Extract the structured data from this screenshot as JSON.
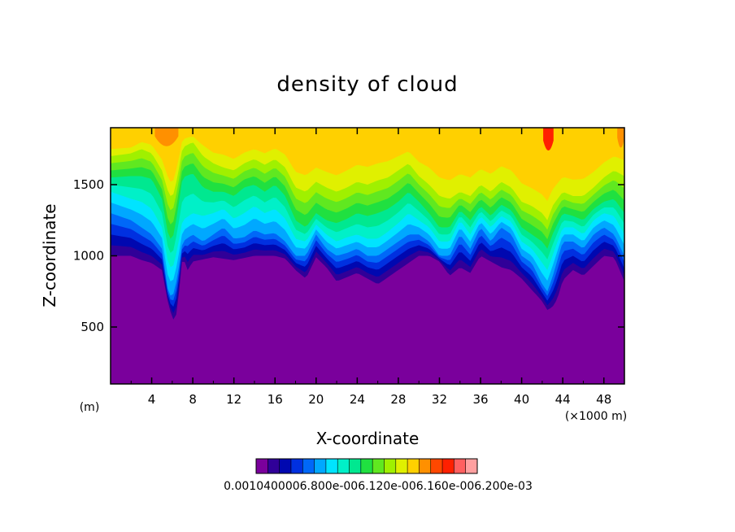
{
  "chart_data": {
    "type": "heatmap",
    "subtype": "filled-contour",
    "title": "density of cloud",
    "xlabel": "X-coordinate",
    "ylabel": "Z-coordinate",
    "x_unit_label": "(×1000 m)",
    "y_unit_label": "(m)",
    "xlim": [
      0,
      50
    ],
    "ylim": [
      100,
      1900
    ],
    "x_ticks": [
      "4",
      "8",
      "12",
      "16",
      "20",
      "24",
      "28",
      "32",
      "36",
      "40",
      "44",
      "48"
    ],
    "y_ticks": [
      "500",
      "1000",
      "1500"
    ],
    "colorbar_labels": "0.0010400006.800e-006.120e-006.160e-006.200e-03",
    "levels": [
      "l0",
      "l1",
      "l2",
      "l3",
      "l4",
      "l5",
      "l6",
      "l7",
      "l8",
      "l9",
      "l10",
      "l11",
      "l12",
      "l13",
      "l14",
      "l15",
      "l16",
      "l17"
    ],
    "colors": [
      "#7a009c",
      "#300098",
      "#0008b0",
      "#0030e0",
      "#0068f8",
      "#00a8ff",
      "#00e4ff",
      "#00f0c8",
      "#00e890",
      "#20e040",
      "#60e820",
      "#a0f000",
      "#e0f000",
      "#ffd000",
      "#ff9000",
      "#ff4800",
      "#ff2000",
      "#ff6060",
      "#ffa0a0"
    ],
    "cloud_base_m": [
      [
        0,
        1000
      ],
      [
        2,
        1000
      ],
      [
        3,
        970
      ],
      [
        4,
        950
      ],
      [
        5,
        900
      ],
      [
        5.5,
        700
      ],
      [
        6,
        560
      ],
      [
        6.3,
        540
      ],
      [
        6.6,
        700
      ],
      [
        7,
        1000
      ],
      [
        7.5,
        900
      ],
      [
        8,
        960
      ],
      [
        10,
        990
      ],
      [
        12,
        970
      ],
      [
        14,
        1000
      ],
      [
        16,
        1000
      ],
      [
        17,
        980
      ],
      [
        18,
        900
      ],
      [
        19,
        840
      ],
      [
        20,
        990
      ],
      [
        21,
        920
      ],
      [
        22,
        820
      ],
      [
        24,
        880
      ],
      [
        26,
        800
      ],
      [
        28,
        900
      ],
      [
        30,
        1000
      ],
      [
        31,
        1000
      ],
      [
        32,
        960
      ],
      [
        33,
        860
      ],
      [
        34,
        920
      ],
      [
        35,
        880
      ],
      [
        36,
        1000
      ],
      [
        37,
        960
      ],
      [
        38,
        920
      ],
      [
        39,
        900
      ],
      [
        40,
        840
      ],
      [
        41,
        760
      ],
      [
        42,
        680
      ],
      [
        42.5,
        620
      ],
      [
        43,
        640
      ],
      [
        43.5,
        700
      ],
      [
        44,
        830
      ],
      [
        45,
        900
      ],
      [
        46,
        860
      ],
      [
        47,
        930
      ],
      [
        48,
        1000
      ],
      [
        49,
        990
      ],
      [
        50,
        820
      ]
    ],
    "contour_heights_m": [
      [
        0,
        1300,
        1450,
        1550,
        1700,
        1800
      ],
      [
        2,
        1250,
        1400,
        1560,
        1720,
        1800
      ],
      [
        3,
        1200,
        1380,
        1560,
        1750,
        1850
      ],
      [
        4,
        1150,
        1330,
        1540,
        1720,
        1840
      ],
      [
        5,
        1050,
        1200,
        1400,
        1600,
        1750
      ],
      [
        5.6,
        750,
        950,
        1150,
        1450,
        1650
      ],
      [
        6,
        700,
        900,
        1100,
        1400,
        1600
      ],
      [
        6.5,
        850,
        1050,
        1300,
        1550,
        1720
      ],
      [
        7,
        1100,
        1250,
        1550,
        1760,
        1880
      ],
      [
        8,
        1150,
        1300,
        1580,
        1800,
        1880
      ],
      [
        9,
        1100,
        1280,
        1480,
        1700,
        1850
      ],
      [
        10,
        1150,
        1300,
        1450,
        1650,
        1800
      ],
      [
        11,
        1200,
        1330,
        1450,
        1620,
        1800
      ],
      [
        12,
        1120,
        1260,
        1420,
        1600,
        1760
      ],
      [
        13,
        1130,
        1300,
        1480,
        1650,
        1800
      ],
      [
        14,
        1180,
        1350,
        1500,
        1680,
        1820
      ],
      [
        15,
        1150,
        1300,
        1450,
        1640,
        1800
      ],
      [
        16,
        1160,
        1330,
        1500,
        1680,
        1830
      ],
      [
        17,
        1100,
        1260,
        1420,
        1620,
        1800
      ],
      [
        18,
        1000,
        1120,
        1250,
        1480,
        1700
      ],
      [
        19,
        1000,
        1100,
        1200,
        1450,
        1680
      ],
      [
        20,
        1150,
        1220,
        1300,
        1520,
        1720
      ],
      [
        21,
        1050,
        1150,
        1250,
        1480,
        1700
      ],
      [
        22,
        1000,
        1100,
        1230,
        1450,
        1680
      ],
      [
        23,
        1020,
        1130,
        1260,
        1480,
        1720
      ],
      [
        24,
        1050,
        1150,
        1300,
        1520,
        1760
      ],
      [
        25,
        1000,
        1120,
        1280,
        1500,
        1750
      ],
      [
        26,
        1000,
        1120,
        1300,
        1530,
        1770
      ],
      [
        27,
        1050,
        1170,
        1330,
        1550,
        1780
      ],
      [
        28,
        1100,
        1230,
        1380,
        1600,
        1800
      ],
      [
        29,
        1150,
        1300,
        1450,
        1650,
        1820
      ],
      [
        30,
        1150,
        1250,
        1380,
        1560,
        1760
      ],
      [
        31,
        1100,
        1200,
        1300,
        1500,
        1740
      ],
      [
        32,
        1000,
        1100,
        1200,
        1420,
        1680
      ],
      [
        33,
        1000,
        1100,
        1200,
        1400,
        1660
      ],
      [
        34,
        1150,
        1250,
        1320,
        1450,
        1700
      ],
      [
        35,
        1050,
        1150,
        1250,
        1420,
        1680
      ],
      [
        36,
        1200,
        1280,
        1350,
        1500,
        1720
      ],
      [
        37,
        1100,
        1200,
        1280,
        1450,
        1700
      ],
      [
        38,
        1200,
        1280,
        1360,
        1520,
        1740
      ],
      [
        39,
        1150,
        1240,
        1320,
        1480,
        1720
      ],
      [
        40,
        1000,
        1100,
        1200,
        1380,
        1640
      ],
      [
        41,
        950,
        1050,
        1150,
        1350,
        1600
      ],
      [
        42,
        800,
        950,
        1100,
        1300,
        1560
      ],
      [
        42.5,
        750,
        900,
        1050,
        1250,
        1520
      ],
      [
        43,
        850,
        1000,
        1150,
        1350,
        1580
      ],
      [
        44,
        1100,
        1200,
        1300,
        1450,
        1660
      ],
      [
        45,
        1100,
        1200,
        1280,
        1420,
        1650
      ],
      [
        46,
        1050,
        1150,
        1250,
        1420,
        1660
      ],
      [
        47,
        1150,
        1250,
        1330,
        1480,
        1700
      ],
      [
        48,
        1200,
        1300,
        1380,
        1550,
        1760
      ],
      [
        49,
        1150,
        1280,
        1400,
        1600,
        1800
      ],
      [
        50,
        1000,
        1150,
        1300,
        1560,
        1780
      ]
    ],
    "hot_spots": [
      {
        "x0": 4.3,
        "x1": 6.6,
        "z_base": 1780,
        "level": 14
      },
      {
        "x0": 42.1,
        "x1": 43.1,
        "z_base": 1750,
        "level": 16
      },
      {
        "x0": 49.3,
        "x1": 50,
        "z_base": 1770,
        "level": 14
      }
    ]
  }
}
